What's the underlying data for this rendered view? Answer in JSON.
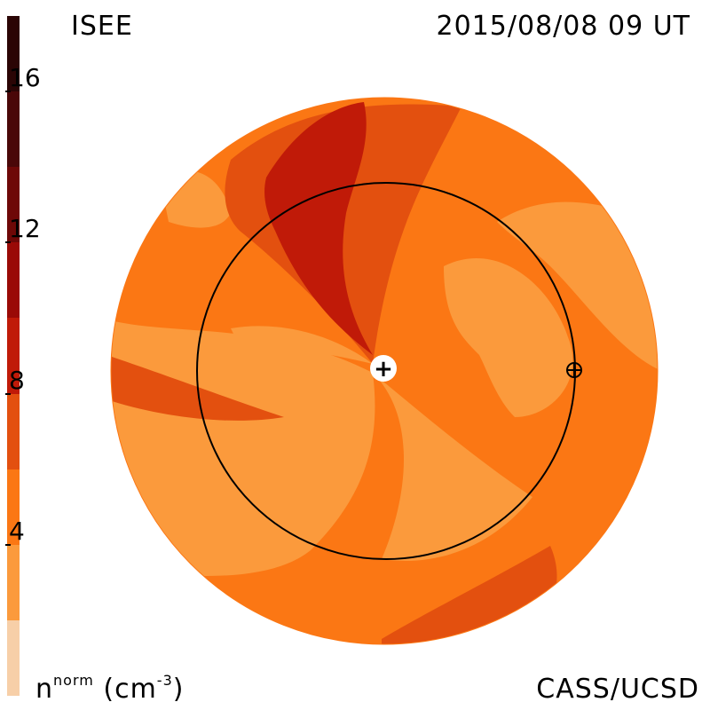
{
  "header": {
    "title": "ISEE",
    "datetime": "2015/08/08 09 UT"
  },
  "footer": {
    "credit": "CASS/UCSD",
    "quantity": "n",
    "quantity_sup": "norm",
    "unit_open": " (cm",
    "unit_sup": "-3",
    "unit_close": ")"
  },
  "colorbar": {
    "min": 0,
    "max": 18,
    "ticks": [
      "4",
      "8",
      "12",
      "16"
    ],
    "levels": [
      {
        "from": 0,
        "to": 2,
        "color": "#f7cfa8"
      },
      {
        "from": 2,
        "to": 4,
        "color": "#fb9a3c"
      },
      {
        "from": 4,
        "to": 6,
        "color": "#fb7714"
      },
      {
        "from": 6,
        "to": 8,
        "color": "#e3500f"
      },
      {
        "from": 8,
        "to": 10,
        "color": "#c01a08"
      },
      {
        "from": 10,
        "to": 12,
        "color": "#9a0a06"
      },
      {
        "from": 12,
        "to": 14,
        "color": "#6e0807"
      },
      {
        "from": 14,
        "to": 16,
        "color": "#4a0708"
      },
      {
        "from": 16,
        "to": 18,
        "color": "#2b0505"
      }
    ]
  },
  "markers": {
    "sun_symbol": "+",
    "earth_symbol": "⊕"
  }
}
